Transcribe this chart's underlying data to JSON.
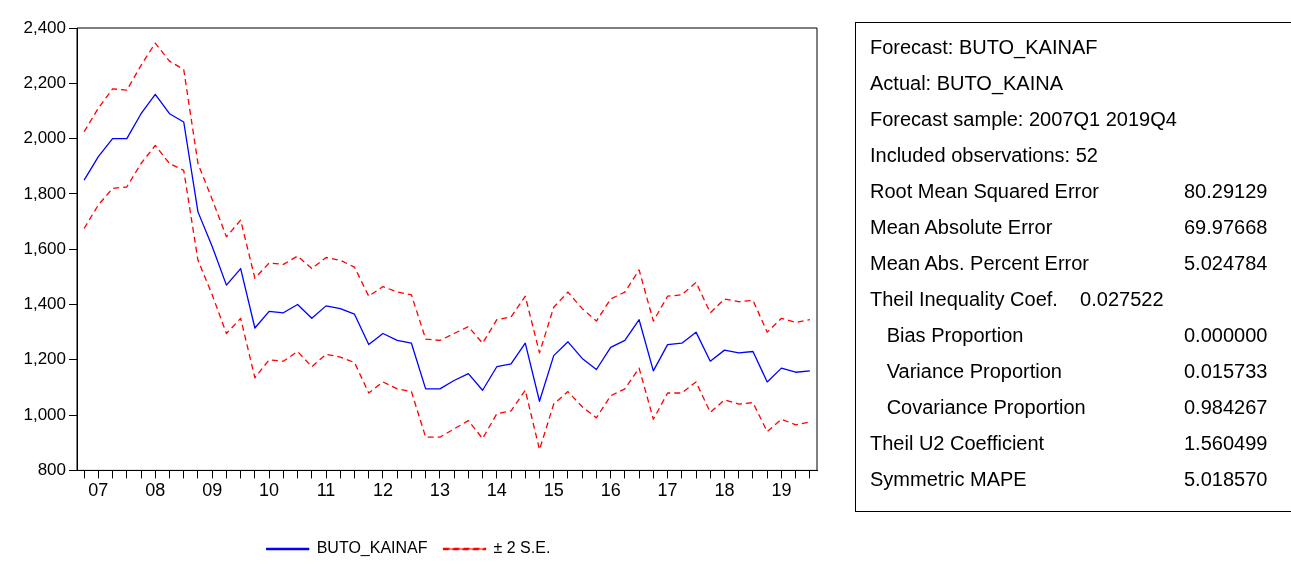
{
  "chart_data": {
    "type": "line",
    "categories": [
      null,
      "07",
      null,
      null,
      null,
      "08",
      null,
      null,
      null,
      "09",
      null,
      null,
      null,
      "10",
      null,
      null,
      null,
      "11",
      null,
      null,
      null,
      "12",
      null,
      null,
      null,
      "13",
      null,
      null,
      null,
      "14",
      null,
      null,
      null,
      "15",
      null,
      null,
      null,
      "16",
      null,
      null,
      null,
      "17",
      null,
      null,
      null,
      "18",
      null,
      null,
      null,
      "19",
      null,
      null
    ],
    "series": [
      {
        "name": "BUTO_KAINAF",
        "color": "#0000ff",
        "line_style": "solid",
        "values": [
          1850,
          1935,
          2000,
          2000,
          2090,
          2160,
          2090,
          2060,
          1735,
          1610,
          1470,
          1530,
          1315,
          1375,
          1370,
          1400,
          1350,
          1395,
          1385,
          1365,
          1255,
          1295,
          1270,
          1260,
          1095,
          1095,
          1125,
          1150,
          1090,
          1175,
          1185,
          1260,
          1050,
          1215,
          1265,
          1205,
          1165,
          1245,
          1270,
          1345,
          1160,
          1255,
          1260,
          1300,
          1195,
          1235,
          1225,
          1230,
          1120,
          1170,
          1155,
          1160
        ]
      },
      {
        "name": "± 2 S.E.",
        "color": "#ff0000",
        "line_style": "dashed",
        "values": [
          2025,
          2110,
          2180,
          2175,
          2265,
          2345,
          2280,
          2250,
          1910,
          1780,
          1645,
          1705,
          1495,
          1550,
          1545,
          1575,
          1530,
          1570,
          1560,
          1535,
          1430,
          1465,
          1445,
          1435,
          1275,
          1270,
          1295,
          1320,
          1260,
          1345,
          1355,
          1430,
          1225,
          1390,
          1445,
          1385,
          1340,
          1420,
          1445,
          1525,
          1340,
          1430,
          1435,
          1480,
          1370,
          1420,
          1410,
          1415,
          1300,
          1350,
          1335,
          1345
        ]
      },
      {
        "color": "#ff0000",
        "line_style": "dashed",
        "values": [
          1675,
          1760,
          1820,
          1825,
          1910,
          1975,
          1910,
          1885,
          1560,
          1435,
          1295,
          1350,
          1135,
          1200,
          1195,
          1230,
          1175,
          1220,
          1210,
          1190,
          1080,
          1120,
          1095,
          1085,
          920,
          920,
          950,
          980,
          915,
          1005,
          1015,
          1090,
          875,
          1040,
          1085,
          1030,
          990,
          1070,
          1095,
          1170,
          985,
          1080,
          1080,
          1120,
          1010,
          1055,
          1040,
          1045,
          940,
          985,
          965,
          975
        ]
      }
    ],
    "ylim": [
      800,
      2400
    ],
    "yticks": [
      {
        "value": 800,
        "label": "800"
      },
      {
        "value": 1000,
        "label": "1,000"
      },
      {
        "value": 1200,
        "label": "1,200"
      },
      {
        "value": 1400,
        "label": "1,400"
      },
      {
        "value": 1600,
        "label": "1,600"
      },
      {
        "value": 1800,
        "label": "1,800"
      },
      {
        "value": 2000,
        "label": "2,000"
      },
      {
        "value": 2200,
        "label": "2,200"
      },
      {
        "value": 2400,
        "label": "2,400"
      }
    ],
    "grid": false,
    "legend": "bottom",
    "marker": "none",
    "annotations": [
      "Forecast: BUTO_KAINAF",
      "Actual: BUTO_KAINA",
      "Forecast sample: 2007Q1 2019Q4",
      "Included observations: 52",
      "Root Mean Squared Error\t80.29129",
      "Mean Absolute Error\t69.97668",
      "Mean Abs. Percent Error\t5.024784",
      "Theil Inequality Coef.    0.027522",
      "   Bias Proportion\t0.000000",
      "   Variance Proportion\t0.015733",
      "   Covariance Proportion\t0.984267",
      "Theil U2 Coefficient\t1.560499",
      "Symmetric MAPE\t5.018570"
    ]
  }
}
